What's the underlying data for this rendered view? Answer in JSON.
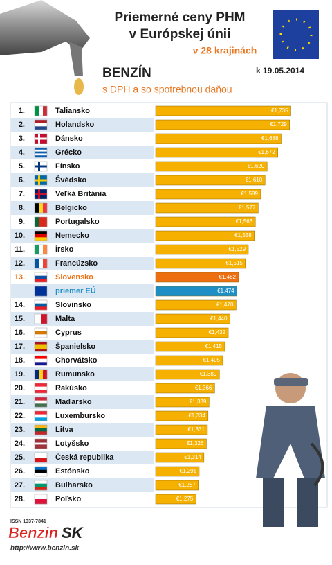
{
  "header": {
    "title_line1": "Priemerné ceny PHM",
    "title_line2": "v Európskej únii",
    "countries_note": "v 28 krajinách",
    "fuel": "BENZÍN",
    "tax_note": "s DPH a so spotrebnou daňou",
    "date": "k 19.05.2014"
  },
  "chart_data": {
    "type": "bar",
    "orientation": "horizontal",
    "ranks": [
      "1.",
      "2.",
      "3.",
      "4.",
      "5.",
      "6.",
      "7.",
      "8.",
      "9.",
      "10.",
      "11.",
      "12.",
      "13.",
      null,
      "14.",
      "15.",
      "16.",
      "17.",
      "18.",
      "19.",
      "20.",
      "21.",
      "22.",
      "23.",
      "24.",
      "25.",
      "26.",
      "27.",
      "28."
    ],
    "categories": [
      "Taliansko",
      "Holandsko",
      "Dánsko",
      "Grécko",
      "Fínsko",
      "Švédsko",
      "Veľká Británia",
      "Belgicko",
      "Portugalsko",
      "Nemecko",
      "Írsko",
      "Francúzsko",
      "Slovensko",
      "priemer EÚ",
      "Slovinsko",
      "Malta",
      "Cyprus",
      "Španielsko",
      "Chorvátsko",
      "Rumunsko",
      "Rakúsko",
      "Maďarsko",
      "Luxembursko",
      "Litva",
      "Lotyšsko",
      "Česká republika",
      "Estónsko",
      "Bulharsko",
      "Poľsko"
    ],
    "values": [
      1.735,
      1.729,
      1.688,
      1.672,
      1.62,
      1.61,
      1.589,
      1.577,
      1.563,
      1.558,
      1.529,
      1.515,
      1.482,
      1.474,
      1.47,
      1.44,
      1.432,
      1.415,
      1.405,
      1.389,
      1.366,
      1.339,
      1.334,
      1.331,
      1.326,
      1.314,
      1.291,
      1.287,
      1.275
    ],
    "value_labels": [
      "€1,735",
      "€1,729",
      "€1,688",
      "€1,672",
      "€1,620",
      "€1,610",
      "€1,589",
      "€1,577",
      "€1,563",
      "€1,558",
      "€1,529",
      "€1,515",
      "€1,482",
      "€1,474",
      "€1,470",
      "€1,440",
      "€1,432",
      "€1,415",
      "€1,405",
      "€1,389",
      "€1,366",
      "€1,339",
      "€1,334",
      "€1,331",
      "€1,326",
      "€1,314",
      "€1,291",
      "€1,287",
      "€1,275"
    ],
    "colors": [
      "#f5b000",
      "#f5b000",
      "#f5b000",
      "#f5b000",
      "#f5b000",
      "#f5b000",
      "#f5b000",
      "#f5b000",
      "#f5b000",
      "#f5b000",
      "#f5b000",
      "#f5b000",
      "#ee6f10",
      "#1e8fc6",
      "#f5b000",
      "#f5b000",
      "#f5b000",
      "#f5b000",
      "#f5b000",
      "#f5b000",
      "#f5b000",
      "#f5b000",
      "#f5b000",
      "#f5b000",
      "#f5b000",
      "#f5b000",
      "#f5b000",
      "#f5b000",
      "#f5b000"
    ],
    "xlim": [
      1.08,
      1.75
    ]
  },
  "footer": {
    "issn": "ISSN 1337-7841",
    "brand_main": "Benzin",
    "brand_suffix": "SK",
    "url": "http://www.benzin.sk"
  }
}
